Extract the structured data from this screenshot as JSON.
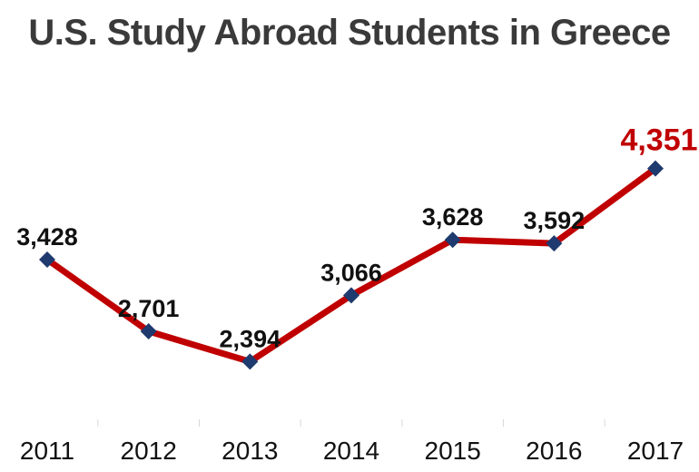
{
  "chart_data": {
    "type": "line",
    "title": "U.S. Study Abroad Students in Greece",
    "categories": [
      "2011",
      "2012",
      "2013",
      "2014",
      "2015",
      "2016",
      "2017"
    ],
    "series": [
      {
        "values": [
          3428,
          2701,
          2394,
          3066,
          3628,
          3592,
          4351
        ],
        "labels": [
          "3,428",
          "2,701",
          "2,394",
          "3,066",
          "3,628",
          "3,592",
          "4,351"
        ]
      }
    ],
    "xlabel": "",
    "ylabel": "",
    "ylim": [
      1000,
      5000
    ],
    "grid": false,
    "legend": "none",
    "colors": {
      "line": "#c00000",
      "marker": "#1f3a6e",
      "label": "#111111",
      "highlight_label": "#c00000",
      "title": "#3a3a3a"
    }
  }
}
